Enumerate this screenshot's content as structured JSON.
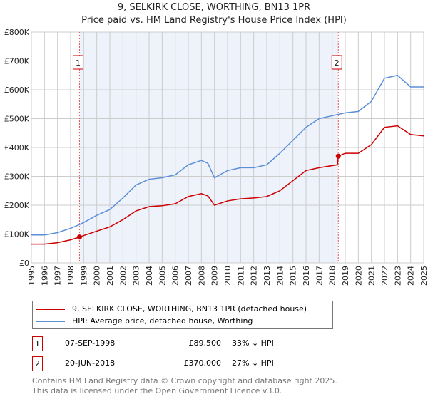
{
  "title": "9, SELKIRK CLOSE, WORTHING, BN13 1PR",
  "subtitle": "Price paid vs. HM Land Registry's House Price Index (HPI)",
  "colors": {
    "property": "#cc0000",
    "hpi": "#5b8fd6",
    "shade": "#eef2fb"
  },
  "chart_data": {
    "type": "line",
    "ylim": [
      0,
      800000
    ],
    "xlim": [
      1995,
      2025
    ],
    "y_ticks": [
      "£0",
      "£100K",
      "£200K",
      "£300K",
      "£400K",
      "£500K",
      "£600K",
      "£700K",
      "£800K"
    ],
    "x_ticks": [
      "1995",
      "1996",
      "1997",
      "1998",
      "1999",
      "2000",
      "2001",
      "2002",
      "2003",
      "2004",
      "2005",
      "2006",
      "2007",
      "2008",
      "2009",
      "2010",
      "2011",
      "2012",
      "2013",
      "2014",
      "2015",
      "2016",
      "2017",
      "2018",
      "2019",
      "2020",
      "2021",
      "2022",
      "2023",
      "2024",
      "2025"
    ],
    "series": [
      {
        "name": "9, SELKIRK CLOSE, WORTHING, BN13 1PR (detached house)",
        "x": [
          1995,
          1996,
          1997,
          1998,
          1998.68,
          1999,
          2000,
          2001,
          2002,
          2003,
          2004,
          2005,
          2006,
          2007,
          2008,
          2008.5,
          2009,
          2010,
          2011,
          2012,
          2013,
          2014,
          2015,
          2016,
          2017,
          2018.4,
          2018.47,
          2019,
          2020,
          2021,
          2022,
          2023,
          2024,
          2025
        ],
        "y": [
          65000,
          65000,
          70000,
          80000,
          89500,
          95000,
          110000,
          125000,
          150000,
          180000,
          195000,
          198000,
          205000,
          230000,
          240000,
          232000,
          200000,
          215000,
          222000,
          225000,
          230000,
          250000,
          285000,
          320000,
          330000,
          340000,
          370000,
          380000,
          380000,
          410000,
          470000,
          475000,
          445000,
          440000
        ]
      },
      {
        "name": "HPI: Average price, detached house, Worthing",
        "x": [
          1995,
          1996,
          1997,
          1998,
          1998.68,
          1999,
          2000,
          2001,
          2002,
          2003,
          2004,
          2005,
          2006,
          2007,
          2008,
          2008.5,
          2009,
          2010,
          2011,
          2012,
          2013,
          2014,
          2015,
          2016,
          2017,
          2018,
          2019,
          2020,
          2021,
          2022,
          2023,
          2024,
          2025
        ],
        "y": [
          97000,
          97000,
          105000,
          120000,
          133000,
          140000,
          165000,
          185000,
          225000,
          270000,
          290000,
          295000,
          305000,
          340000,
          355000,
          345000,
          295000,
          320000,
          330000,
          330000,
          340000,
          380000,
          425000,
          470000,
          500000,
          510000,
          520000,
          525000,
          560000,
          640000,
          650000,
          610000,
          610000
        ]
      }
    ],
    "annotations": [
      {
        "label": "1",
        "x": 1998.68,
        "y": 89500
      },
      {
        "label": "2",
        "x": 2018.47,
        "y": 370000
      }
    ],
    "legend": "bottom"
  },
  "legend": [
    {
      "label": "9, SELKIRK CLOSE, WORTHING, BN13 1PR (detached house)"
    },
    {
      "label": "HPI: Average price, detached house, Worthing"
    }
  ],
  "sales": [
    {
      "num": "1",
      "date": "07-SEP-1998",
      "price": "£89,500",
      "diff": "33% ↓ HPI"
    },
    {
      "num": "2",
      "date": "20-JUN-2018",
      "price": "£370,000",
      "diff": "27% ↓ HPI"
    }
  ],
  "footer": [
    "Contains HM Land Registry data © Crown copyright and database right 2025.",
    "This data is licensed under the Open Government Licence v3.0."
  ]
}
